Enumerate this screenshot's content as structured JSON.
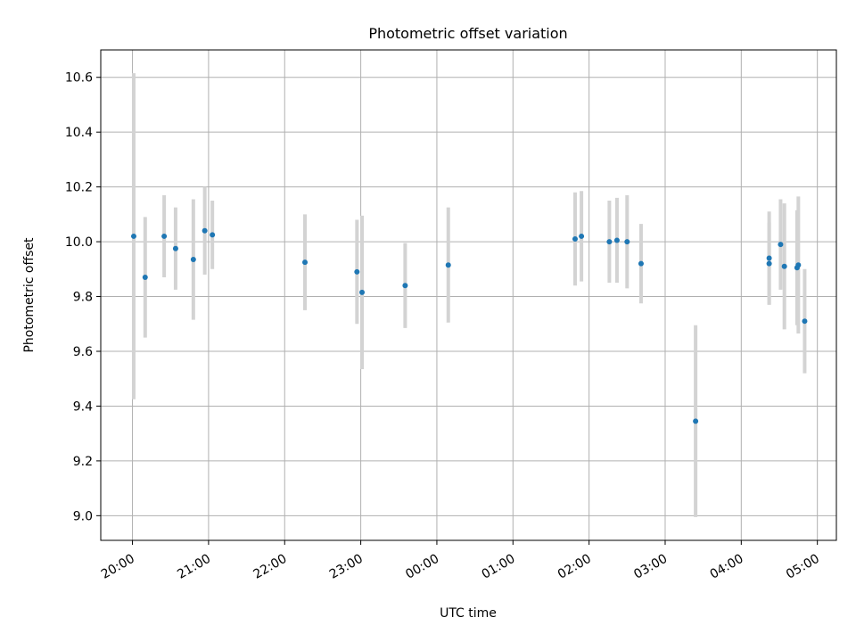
{
  "chart_data": {
    "type": "scatter",
    "title": "Photometric offset variation",
    "xlabel": "UTC time",
    "ylabel": "Photometric offset",
    "x_is_time": true,
    "x_start": "2000-01-01 19:35",
    "x_end": "2000-01-02 05:15",
    "xticks": [
      "20:00",
      "21:00",
      "22:00",
      "23:00",
      "00:00",
      "01:00",
      "02:00",
      "03:00",
      "04:00",
      "05:00"
    ],
    "ylim": [
      8.91,
      10.7
    ],
    "yticks": [
      "9.0",
      "9.2",
      "9.4",
      "9.6",
      "9.8",
      "10.0",
      "10.2",
      "10.4",
      "10.6"
    ],
    "grid": true,
    "marker_color": "#1f77b4",
    "errorbar_color": "#d3d3d3",
    "points": [
      {
        "t": "20:01",
        "y": 10.02,
        "err": 0.595
      },
      {
        "t": "20:10",
        "y": 9.87,
        "err": 0.22
      },
      {
        "t": "20:25",
        "y": 10.02,
        "err": 0.15
      },
      {
        "t": "20:34",
        "y": 9.975,
        "err": 0.15
      },
      {
        "t": "20:48",
        "y": 9.935,
        "err": 0.22
      },
      {
        "t": "20:57",
        "y": 10.04,
        "err": 0.16
      },
      {
        "t": "21:03",
        "y": 10.025,
        "err": 0.125
      },
      {
        "t": "22:16",
        "y": 9.925,
        "err": 0.175
      },
      {
        "t": "22:57",
        "y": 9.89,
        "err": 0.19
      },
      {
        "t": "23:01",
        "y": 9.815,
        "err": 0.28
      },
      {
        "t": "23:35",
        "y": 9.84,
        "err": 0.155
      },
      {
        "t": "00:09",
        "y": 9.915,
        "err": 0.21
      },
      {
        "t": "01:49",
        "y": 10.01,
        "err": 0.17
      },
      {
        "t": "01:54",
        "y": 10.02,
        "err": 0.165
      },
      {
        "t": "02:16",
        "y": 10.0,
        "err": 0.15
      },
      {
        "t": "02:22",
        "y": 10.005,
        "err": 0.155
      },
      {
        "t": "02:30",
        "y": 10.0,
        "err": 0.17
      },
      {
        "t": "02:41",
        "y": 9.92,
        "err": 0.145
      },
      {
        "t": "03:24",
        "y": 9.345,
        "err": 0.35
      },
      {
        "t": "04:22",
        "y": 9.94,
        "err": 0.17
      },
      {
        "t": "04:22",
        "y": 9.92,
        "err": 0.15
      },
      {
        "t": "04:31",
        "y": 9.99,
        "err": 0.165
      },
      {
        "t": "04:34",
        "y": 9.91,
        "err": 0.23
      },
      {
        "t": "04:44",
        "y": 9.905,
        "err": 0.21
      },
      {
        "t": "04:45",
        "y": 9.915,
        "err": 0.25
      },
      {
        "t": "04:50",
        "y": 9.71,
        "err": 0.19
      }
    ]
  }
}
